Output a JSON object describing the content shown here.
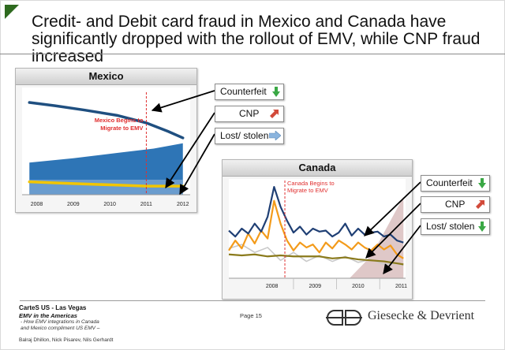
{
  "title": "Credit- and Debit card fraud in Mexico and Canada have significantly dropped with the rollout of EMV, while CNP fraud increased",
  "colors": {
    "counterfeit": "#1f4f80",
    "cnp_area": "#2e75b6",
    "lost_stolen": "#f2c500",
    "canada_counterfeit": "#1f3f74",
    "canada_cnp": "#f39b1b",
    "canada_lost": "#8a7a1b",
    "canada_gray": "#c9c9c9",
    "emv_marker": "#e03030",
    "arrow_green": "#3aa845",
    "arrow_red": "#d24a3a",
    "arrow_lightblue": "#8ab4de"
  },
  "callouts_mexico": [
    {
      "label": "Counterfeit",
      "icon": "arrow-down-green-icon"
    },
    {
      "label": "CNP",
      "icon": "arrow-up-red-icon"
    },
    {
      "label": "Lost/ stolen",
      "icon": "arrow-right-blue-icon"
    }
  ],
  "callouts_canada": [
    {
      "label": "Counterfeit",
      "icon": "arrow-down-green-icon"
    },
    {
      "label": "CNP",
      "icon": "arrow-up-red-icon"
    },
    {
      "label": "Lost/ stolen",
      "icon": "arrow-down-green-icon"
    }
  ],
  "chart_data": [
    {
      "type": "area",
      "title": "Mexico",
      "categories": [
        "2008",
        "2009",
        "2010",
        "2011",
        "2012"
      ],
      "annotation": "Mexico Begins to\nMigrate to EMV",
      "annotation_x": 2011.0,
      "xlim": [
        2007.6,
        2012.2
      ],
      "ylim": [
        0,
        100
      ],
      "grid": false,
      "series": [
        {
          "name": "Counterfeit",
          "type": "line",
          "x": [
            2007.8,
            2008.5,
            2009.3,
            2010.2,
            2011.0,
            2011.6,
            2012.0
          ],
          "values": [
            86,
            83,
            79,
            74,
            67,
            59,
            53
          ]
        },
        {
          "name": "CNP",
          "type": "area",
          "x": [
            2007.8,
            2009.0,
            2010.2,
            2011.2,
            2012.0
          ],
          "values": [
            30,
            34,
            39,
            43,
            48
          ]
        },
        {
          "name": "Lost/ stolen",
          "type": "line",
          "x": [
            2007.8,
            2008.5,
            2009.3,
            2010.2,
            2011.0,
            2011.6,
            2012.0
          ],
          "values": [
            12,
            11,
            10,
            9,
            8,
            8,
            8
          ]
        }
      ]
    },
    {
      "type": "line",
      "title": "Canada",
      "categories": [
        "2008",
        "2009",
        "2010",
        "2011"
      ],
      "annotation": "Canada Begins to\nMigrate to EMV",
      "annotation_x": 2008.8,
      "xlim": [
        2007.5,
        2011.6
      ],
      "ylim": [
        0,
        100
      ],
      "grid": false,
      "series": [
        {
          "name": "Counterfeit",
          "x": [
            2007.5,
            2007.65,
            2007.8,
            2007.95,
            2008.1,
            2008.25,
            2008.4,
            2008.55,
            2008.7,
            2008.85,
            2009.0,
            2009.15,
            2009.3,
            2009.45,
            2009.6,
            2009.75,
            2009.9,
            2010.05,
            2010.2,
            2010.35,
            2010.5,
            2010.65,
            2010.8,
            2010.95,
            2011.1,
            2011.25,
            2011.4,
            2011.55
          ],
          "values": [
            48,
            42,
            50,
            45,
            55,
            47,
            62,
            92,
            72,
            58,
            46,
            52,
            44,
            50,
            47,
            48,
            42,
            46,
            55,
            43,
            50,
            44,
            46,
            47,
            42,
            44,
            38,
            36
          ]
        },
        {
          "name": "CNP",
          "x": [
            2007.5,
            2007.65,
            2007.8,
            2007.95,
            2008.1,
            2008.25,
            2008.4,
            2008.55,
            2008.7,
            2008.85,
            2009.0,
            2009.15,
            2009.3,
            2009.45,
            2009.6,
            2009.75,
            2009.9,
            2010.05,
            2010.2,
            2010.35,
            2010.5,
            2010.65,
            2010.8,
            2010.95,
            2011.1,
            2011.25,
            2011.4,
            2011.55
          ],
          "values": [
            28,
            38,
            30,
            45,
            35,
            48,
            40,
            78,
            55,
            38,
            28,
            36,
            31,
            34,
            26,
            36,
            30,
            38,
            34,
            29,
            36,
            31,
            28,
            34,
            29,
            33,
            24,
            20
          ]
        },
        {
          "name": "Lost/ stolen",
          "x": [
            2007.5,
            2007.8,
            2008.1,
            2008.4,
            2008.7,
            2009.0,
            2009.3,
            2009.6,
            2009.9,
            2010.2,
            2010.5,
            2010.8,
            2011.1,
            2011.4,
            2011.55
          ],
          "values": [
            24,
            23,
            24,
            22,
            23,
            22,
            22,
            22,
            20,
            21,
            19,
            18,
            17,
            15,
            14
          ]
        },
        {
          "name": "",
          "x": [
            2007.5,
            2007.8,
            2008.1,
            2008.4,
            2008.7,
            2009.0,
            2009.3,
            2009.6,
            2009.9,
            2010.2,
            2010.5,
            2010.8,
            2011.1,
            2011.4,
            2011.55
          ],
          "values": [
            30,
            34,
            26,
            31,
            18,
            26,
            17,
            23,
            17,
            22,
            16,
            19,
            14,
            15,
            13
          ]
        },
        {
          "name": "",
          "type": "area",
          "x": [
            2010.3,
            2010.7,
            2011.0,
            2011.3,
            2011.55
          ],
          "values": [
            0,
            18,
            38,
            62,
            82
          ]
        }
      ]
    }
  ],
  "footer": {
    "org": "CarteS US - Las Vegas",
    "subtitle": "EMV in the Americas",
    "desc": "- How EMV integrations in Canada\nand Mexico compliment US EMV –",
    "authors": "Balraj Dhillon, Nick Pisarev, Nils Gerhardt",
    "page": "Page 15",
    "company": "Giesecke & Devrient"
  }
}
